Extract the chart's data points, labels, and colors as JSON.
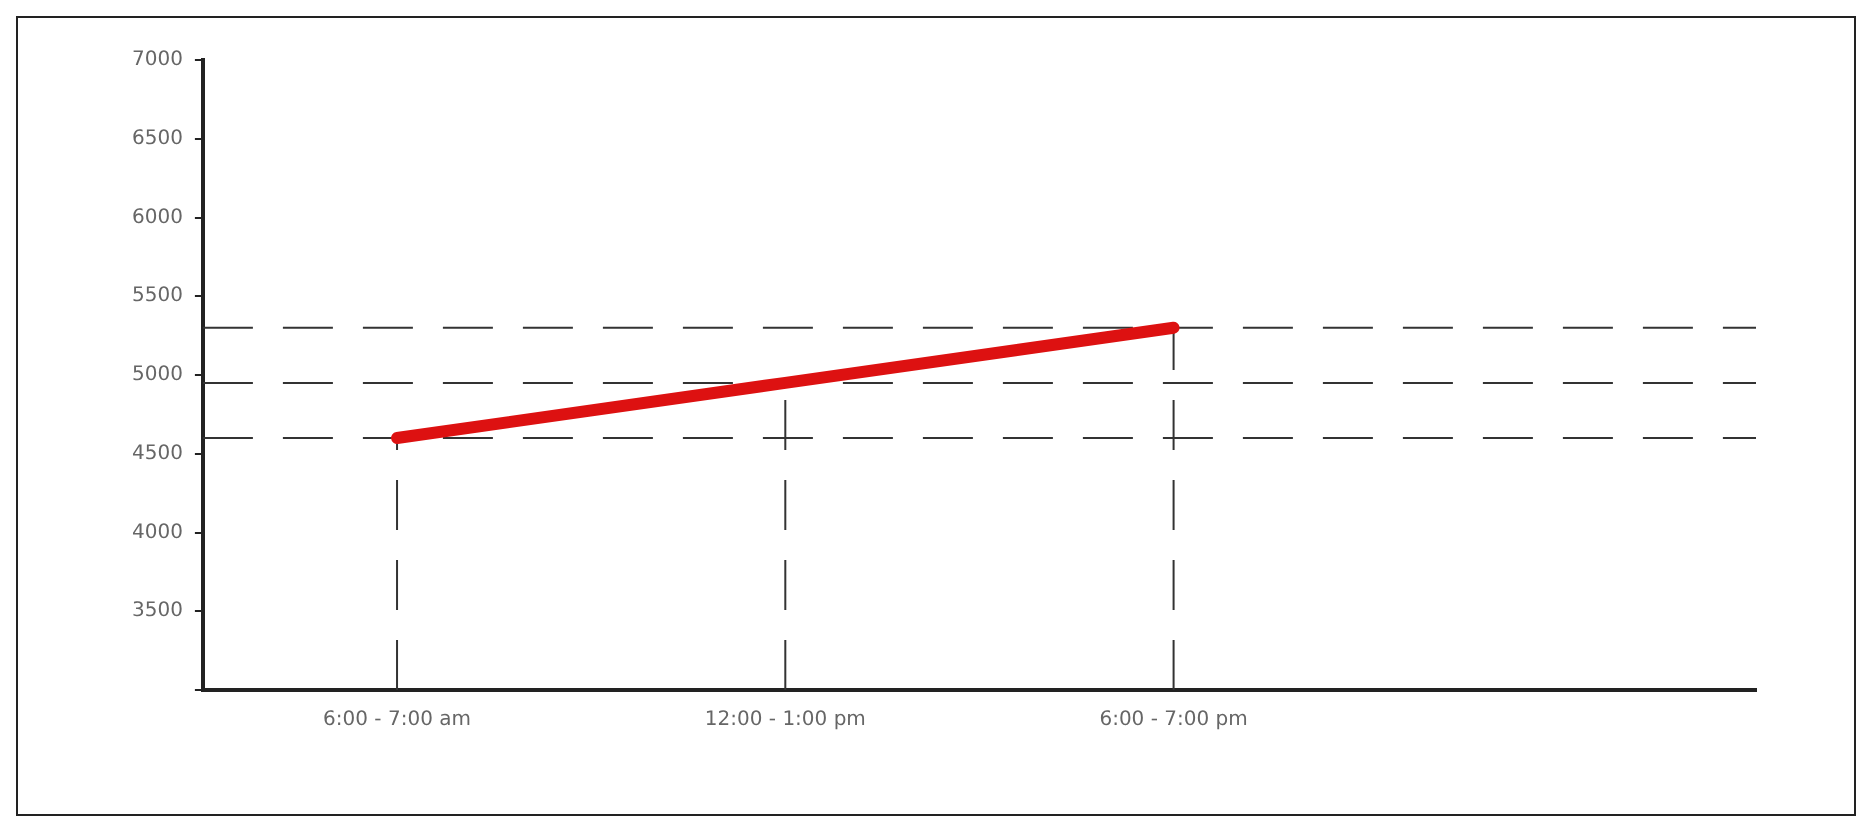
{
  "chart_data": {
    "type": "line",
    "categories": [
      "6:00 - 7:00 am",
      "12:00 - 1:00 pm",
      "6:00 - 7:00 pm",
      null
    ],
    "series": [
      {
        "color": "#dd1111",
        "values": [
          4600,
          4950,
          5300,
          null
        ]
      }
    ],
    "ylim": [
      3000,
      7000
    ],
    "yticks": [
      {
        "value": 3000,
        "label": null
      },
      3500,
      4000,
      4500,
      5000,
      5500,
      6000,
      6500,
      7000
    ],
    "grid": false,
    "legend": false,
    "marker": "none",
    "line_style": "solid",
    "ref_lines": [
      {
        "axis": "y",
        "value": 5300,
        "color": "#333333",
        "line_style": "dashed"
      },
      {
        "axis": "y",
        "value": 4950,
        "color": "#333333",
        "line_style": "dashed"
      },
      {
        "axis": "y",
        "value": 4600,
        "color": "#333333",
        "line_style": "dashed"
      },
      {
        "axis": "x",
        "value": "6:00 - 7:00 am",
        "color": "#333333",
        "line_style": "dashed"
      },
      {
        "axis": "x",
        "value": "12:00 - 1:00 pm",
        "color": "#333333",
        "line_style": "dashed"
      },
      {
        "axis": "x",
        "value": "6:00 - 7:00 pm",
        "color": "#333333",
        "line_style": "dashed"
      }
    ]
  }
}
